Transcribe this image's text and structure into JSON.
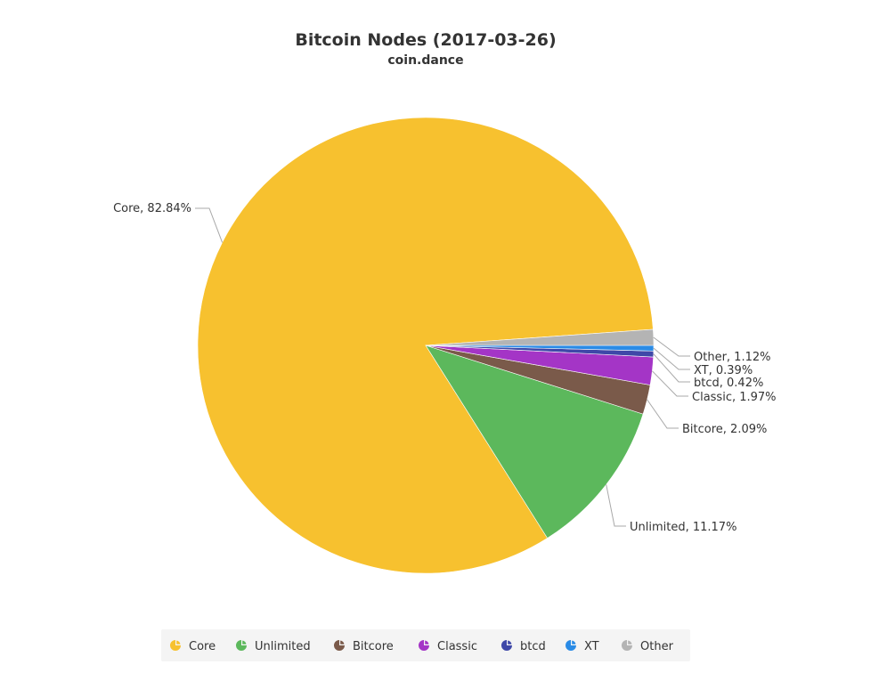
{
  "chart_data": {
    "type": "pie",
    "title": "Bitcoin Nodes (2017-03-26)",
    "subtitle": "coin.dance",
    "slices": [
      {
        "name": "Core",
        "value": 82.84,
        "label": "Core, 82.84%",
        "color": "#F7C12F"
      },
      {
        "name": "Unlimited",
        "value": 11.17,
        "label": "Unlimited, 11.17%",
        "color": "#5CB85C"
      },
      {
        "name": "Bitcore",
        "value": 2.09,
        "label": "Bitcore, 2.09%",
        "color": "#7A5A4A"
      },
      {
        "name": "Classic",
        "value": 1.97,
        "label": "Classic, 1.97%",
        "color": "#A435C6"
      },
      {
        "name": "btcd",
        "value": 0.42,
        "label": "btcd, 0.42%",
        "color": "#3F48A8"
      },
      {
        "name": "XT",
        "value": 0.39,
        "label": "XT, 0.39%",
        "color": "#2A8BE6"
      },
      {
        "name": "Other",
        "value": 1.12,
        "label": "Other, 1.12%",
        "color": "#B4B4B4"
      }
    ],
    "legend": {
      "position": "bottom",
      "items": [
        "Core",
        "Unlimited",
        "Bitcore",
        "Classic",
        "btcd",
        "XT",
        "Other"
      ]
    }
  }
}
